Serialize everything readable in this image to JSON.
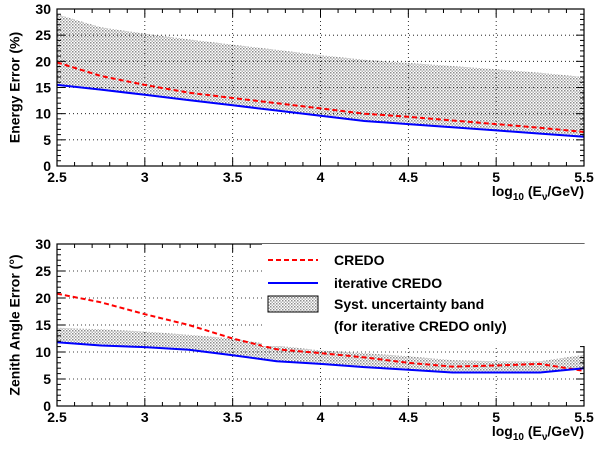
{
  "chart_data": [
    {
      "type": "line",
      "title": "",
      "ylabel": "Energy Error (%)",
      "xlabel_main": "log",
      "xlabel_sub": "10",
      "xlabel_rest": " (E",
      "xlabel_nu": "ν",
      "xlabel_tail": "/GeV)",
      "xlim": [
        2.5,
        5.5
      ],
      "ylim": [
        0,
        30
      ],
      "xticks": [
        "2.5",
        "3",
        "3.5",
        "4",
        "4.5",
        "5",
        "5.5"
      ],
      "yticks": [
        "0",
        "5",
        "10",
        "15",
        "20",
        "25",
        "30"
      ],
      "grid": true,
      "band": {
        "x": [
          2.5,
          2.75,
          3.0,
          3.25,
          3.5,
          3.75,
          4.0,
          4.25,
          4.5,
          4.75,
          5.0,
          5.25,
          5.5
        ],
        "lower": [
          15.5,
          14.6,
          13.6,
          12.6,
          11.6,
          10.6,
          9.6,
          8.6,
          8.0,
          7.4,
          6.8,
          6.2,
          5.6
        ],
        "upper": [
          29.0,
          26.5,
          25.3,
          24.2,
          23.2,
          22.2,
          21.2,
          20.3,
          19.7,
          19.1,
          18.5,
          17.8,
          17.0
        ]
      },
      "series": [
        {
          "name": "CREDO",
          "color": "#ff0000",
          "dash": true,
          "x": [
            2.5,
            2.75,
            3.0,
            3.25,
            3.5,
            3.75,
            4.0,
            4.25,
            4.5,
            4.75,
            5.0,
            5.25,
            5.5
          ],
          "values": [
            19.8,
            17.2,
            15.5,
            14.0,
            13.0,
            12.0,
            11.0,
            10.0,
            9.4,
            8.7,
            8.0,
            7.3,
            6.5
          ]
        },
        {
          "name": "iterative CREDO",
          "color": "#0000ff",
          "dash": false,
          "x": [
            2.5,
            2.75,
            3.0,
            3.25,
            3.5,
            3.75,
            4.0,
            4.25,
            4.5,
            4.75,
            5.0,
            5.25,
            5.5
          ],
          "values": [
            15.5,
            14.6,
            13.6,
            12.6,
            11.6,
            10.6,
            9.6,
            8.6,
            8.0,
            7.4,
            6.8,
            6.2,
            5.6
          ]
        }
      ]
    },
    {
      "type": "line",
      "title": "",
      "ylabel": "Zenith Angle Error (°)",
      "xlabel_main": "log",
      "xlabel_sub": "10",
      "xlabel_rest": " (E",
      "xlabel_nu": "ν",
      "xlabel_tail": "/GeV)",
      "xlim": [
        2.5,
        5.5
      ],
      "ylim": [
        0,
        30
      ],
      "xticks": [
        "2.5",
        "3",
        "3.5",
        "4",
        "4.5",
        "5",
        "5.5"
      ],
      "yticks": [
        "0",
        "5",
        "10",
        "15",
        "20",
        "25",
        "30"
      ],
      "grid": true,
      "band": {
        "x": [
          2.5,
          2.75,
          3.0,
          3.25,
          3.5,
          3.75,
          4.0,
          4.25,
          4.5,
          4.75,
          5.0,
          5.25,
          5.5
        ],
        "lower": [
          11.8,
          11.2,
          10.9,
          10.4,
          9.4,
          8.3,
          7.8,
          7.2,
          6.7,
          6.2,
          6.2,
          6.2,
          7.0
        ],
        "upper": [
          14.5,
          14.2,
          13.8,
          13.2,
          12.5,
          11.2,
          10.3,
          9.8,
          9.2,
          8.5,
          8.3,
          8.3,
          9.5
        ]
      },
      "series": [
        {
          "name": "CREDO",
          "color": "#ff0000",
          "dash": true,
          "x": [
            2.5,
            2.75,
            3.0,
            3.25,
            3.5,
            3.75,
            4.0,
            4.25,
            4.5,
            4.75,
            5.0,
            5.25,
            5.5
          ],
          "values": [
            20.8,
            19.2,
            17.0,
            15.0,
            12.5,
            10.5,
            9.8,
            9.0,
            8.0,
            7.3,
            7.5,
            7.8,
            6.5
          ]
        },
        {
          "name": "iterative CREDO",
          "color": "#0000ff",
          "dash": false,
          "x": [
            2.5,
            2.75,
            3.0,
            3.25,
            3.5,
            3.75,
            4.0,
            4.25,
            4.5,
            4.75,
            5.0,
            5.25,
            5.5
          ],
          "values": [
            11.8,
            11.2,
            10.9,
            10.4,
            9.4,
            8.3,
            7.8,
            7.2,
            6.7,
            6.2,
            6.2,
            6.2,
            7.0
          ]
        }
      ],
      "legend": {
        "placement": "top-right",
        "items": [
          "CREDO",
          "iterative CREDO",
          "Syst. uncertainty band"
        ],
        "note": "(for iterative CREDO only)"
      }
    }
  ]
}
